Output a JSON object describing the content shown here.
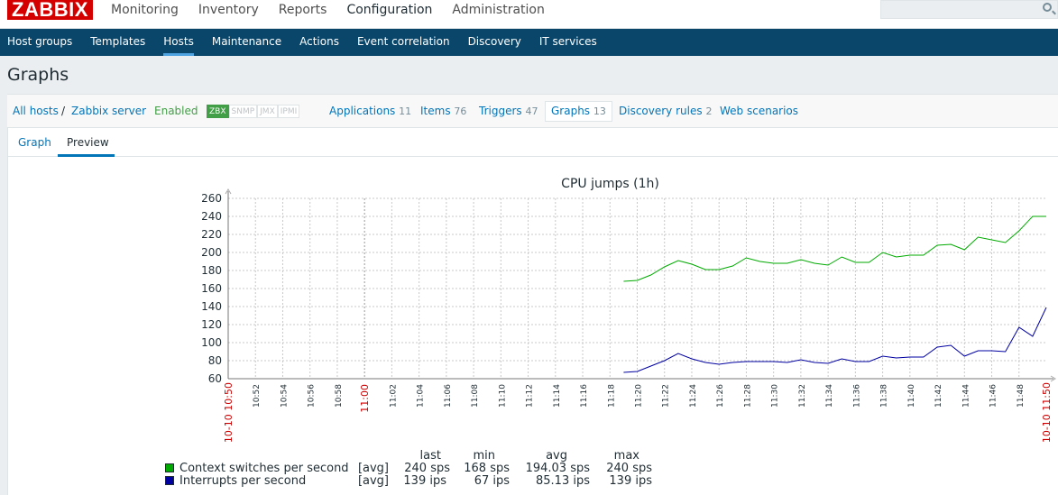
{
  "header": {
    "logo": "ZABBIX",
    "menu": [
      "Monitoring",
      "Inventory",
      "Reports",
      "Configuration",
      "Administration"
    ],
    "active_menu": "Configuration",
    "search_icon": "search-icon"
  },
  "submenu": {
    "items": [
      "Host groups",
      "Templates",
      "Hosts",
      "Maintenance",
      "Actions",
      "Event correlation",
      "Discovery",
      "IT services"
    ],
    "active": "Hosts"
  },
  "page_title": "Graphs",
  "hostnav": {
    "all_hosts": "All hosts",
    "separator": "/",
    "host": "Zabbix server",
    "status": "Enabled",
    "badges": [
      "ZBX",
      "SNMP",
      "JMX",
      "IPMI"
    ],
    "applications": {
      "label": "Applications",
      "count": "11"
    },
    "items": {
      "label": "Items",
      "count": "76"
    },
    "triggers": {
      "label": "Triggers",
      "count": "47"
    },
    "graphs": {
      "label": "Graphs",
      "count": "13"
    },
    "discovery": {
      "label": "Discovery rules",
      "count": "2"
    },
    "web": {
      "label": "Web scenarios"
    }
  },
  "tabs": {
    "graph": "Graph",
    "preview": "Preview"
  },
  "colors": {
    "series1": "#00aa00",
    "series2": "#0000a0",
    "highlight_tick": "#cc0000"
  },
  "chart_data": {
    "type": "line",
    "title": "CPU jumps (1h)",
    "ylim": [
      60,
      260
    ],
    "y_ticks": [
      "60",
      "80",
      "100",
      "120",
      "140",
      "160",
      "180",
      "200",
      "220",
      "240",
      "260"
    ],
    "x_start_label": "10-10 10:50",
    "x_end_label": "10-10 11:50",
    "x_ticks": [
      "10:52",
      "10:54",
      "10:56",
      "10:58",
      "11:00",
      "11:02",
      "11:04",
      "11:06",
      "11:08",
      "11:10",
      "11:12",
      "11:14",
      "11:16",
      "11:18",
      "11:20",
      "11:22",
      "11:24",
      "11:26",
      "11:28",
      "11:30",
      "11:32",
      "11:34",
      "11:36",
      "11:38",
      "11:40",
      "11:42",
      "11:44",
      "11:46",
      "11:48"
    ],
    "highlight_tick": "11:00",
    "grid": true,
    "series": [
      {
        "name": "Context switches per second",
        "color": "#00aa00",
        "func": "[avg]",
        "last": "240 sps",
        "min": "168 sps",
        "avg": "194.03 sps",
        "max": "240 sps",
        "points": [
          [
            "11:19",
            168
          ],
          [
            "11:20",
            169
          ],
          [
            "11:21",
            175
          ],
          [
            "11:22",
            184
          ],
          [
            "11:23",
            191
          ],
          [
            "11:24",
            187
          ],
          [
            "11:25",
            181
          ],
          [
            "11:26",
            181
          ],
          [
            "11:27",
            185
          ],
          [
            "11:28",
            194
          ],
          [
            "11:29",
            190
          ],
          [
            "11:30",
            188
          ],
          [
            "11:31",
            188
          ],
          [
            "11:32",
            192
          ],
          [
            "11:33",
            188
          ],
          [
            "11:34",
            186
          ],
          [
            "11:35",
            195
          ],
          [
            "11:36",
            189
          ],
          [
            "11:37",
            189
          ],
          [
            "11:38",
            200
          ],
          [
            "11:39",
            195
          ],
          [
            "11:40",
            197
          ],
          [
            "11:41",
            197
          ],
          [
            "11:42",
            208
          ],
          [
            "11:43",
            209
          ],
          [
            "11:44",
            203
          ],
          [
            "11:45",
            217
          ],
          [
            "11:46",
            214
          ],
          [
            "11:47",
            211
          ],
          [
            "11:48",
            224
          ],
          [
            "11:49",
            240
          ],
          [
            "11:50",
            240
          ]
        ]
      },
      {
        "name": "Interrupts per second",
        "color": "#0000a0",
        "func": "[avg]",
        "last": "139 ips",
        "min": "67 ips",
        "avg": "85.13 ips",
        "max": "139 ips",
        "points": [
          [
            "11:19",
            67
          ],
          [
            "11:20",
            68
          ],
          [
            "11:21",
            74
          ],
          [
            "11:22",
            80
          ],
          [
            "11:23",
            88
          ],
          [
            "11:24",
            82
          ],
          [
            "11:25",
            78
          ],
          [
            "11:26",
            76
          ],
          [
            "11:27",
            78
          ],
          [
            "11:28",
            79
          ],
          [
            "11:29",
            79
          ],
          [
            "11:30",
            79
          ],
          [
            "11:31",
            78
          ],
          [
            "11:32",
            81
          ],
          [
            "11:33",
            78
          ],
          [
            "11:34",
            77
          ],
          [
            "11:35",
            82
          ],
          [
            "11:36",
            79
          ],
          [
            "11:37",
            79
          ],
          [
            "11:38",
            85
          ],
          [
            "11:39",
            83
          ],
          [
            "11:40",
            84
          ],
          [
            "11:41",
            84
          ],
          [
            "11:42",
            95
          ],
          [
            "11:43",
            97
          ],
          [
            "11:44",
            85
          ],
          [
            "11:45",
            91
          ],
          [
            "11:46",
            91
          ],
          [
            "11:47",
            90
          ],
          [
            "11:48",
            117
          ],
          [
            "11:49",
            107
          ],
          [
            "11:50",
            139
          ]
        ]
      }
    ],
    "legend_headers": {
      "last": "last",
      "min": "min",
      "avg": "avg",
      "max": "max"
    }
  }
}
